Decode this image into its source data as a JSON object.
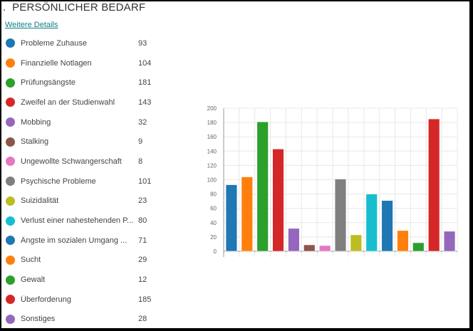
{
  "header": {
    "title": ".  PERSÖNLICHER BEDARF",
    "details_link": "Weitere Details"
  },
  "legend": [
    {
      "label": "Probleme Zuhause",
      "value": "93",
      "color": "#1f77b4"
    },
    {
      "label": "Finanzielle Notlagen",
      "value": "104",
      "color": "#ff7f0e"
    },
    {
      "label": "Prüfungsängste",
      "value": "181",
      "color": "#2ca02c"
    },
    {
      "label": "Zweifel an der Studienwahl",
      "value": "143",
      "color": "#d62728"
    },
    {
      "label": "Mobbing",
      "value": "32",
      "color": "#9467bd"
    },
    {
      "label": "Stalking",
      "value": "9",
      "color": "#8c564b"
    },
    {
      "label": "Ungewollte Schwangerschaft",
      "value": "8",
      "color": "#e377c2"
    },
    {
      "label": "Psychische Probleme",
      "value": "101",
      "color": "#7f7f7f"
    },
    {
      "label": "Suizidalität",
      "value": "23",
      "color": "#bcbd22"
    },
    {
      "label": "Verlust einer nahestehenden P...",
      "value": "80",
      "color": "#17becf"
    },
    {
      "label": "Ängste im sozialen Umgang ...",
      "value": "71",
      "color": "#1f77b4"
    },
    {
      "label": "Sucht",
      "value": "29",
      "color": "#ff7f0e"
    },
    {
      "label": "Gewalt",
      "value": "12",
      "color": "#2ca02c"
    },
    {
      "label": "Überforderung",
      "value": "185",
      "color": "#d62728"
    },
    {
      "label": "Sonstiges",
      "value": "28",
      "color": "#9467bd"
    }
  ],
  "chart_data": {
    "type": "bar",
    "title": "Persönlicher Bedarf",
    "categories": [
      "Probleme Zuhause",
      "Finanzielle Notlagen",
      "Prüfungsängste",
      "Zweifel an der Studienwahl",
      "Mobbing",
      "Stalking",
      "Ungewollte Schwangerschaft",
      "Psychische Probleme",
      "Suizidalität",
      "Verlust einer nahestehenden P...",
      "Ängste im sozialen Umgang ...",
      "Sucht",
      "Gewalt",
      "Überforderung",
      "Sonstiges"
    ],
    "values": [
      93,
      104,
      181,
      143,
      32,
      9,
      8,
      101,
      23,
      80,
      71,
      29,
      12,
      185,
      28
    ],
    "colors": [
      "#1f77b4",
      "#ff7f0e",
      "#2ca02c",
      "#d62728",
      "#9467bd",
      "#8c564b",
      "#e377c2",
      "#7f7f7f",
      "#bcbd22",
      "#17becf",
      "#1f77b4",
      "#ff7f0e",
      "#2ca02c",
      "#d62728",
      "#9467bd"
    ],
    "xlabel": "",
    "ylabel": "",
    "ylim": [
      0,
      200
    ],
    "yticks": [
      0,
      20,
      40,
      60,
      80,
      100,
      120,
      140,
      160,
      180,
      200
    ],
    "grid": true,
    "legend_position": "left"
  }
}
